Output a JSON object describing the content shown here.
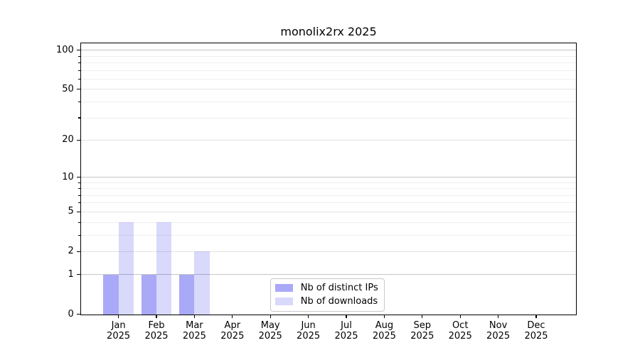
{
  "chart_data": {
    "type": "bar",
    "title": "monolix2rx 2025",
    "categories": [
      "Jan 2025",
      "Feb 2025",
      "Mar 2025",
      "Apr 2025",
      "May 2025",
      "Jun 2025",
      "Jul 2025",
      "Aug 2025",
      "Sep 2025",
      "Oct 2025",
      "Nov 2025",
      "Dec 2025"
    ],
    "xtick_months": [
      "Jan",
      "Feb",
      "Mar",
      "Apr",
      "May",
      "Jun",
      "Jul",
      "Aug",
      "Sep",
      "Oct",
      "Nov",
      "Dec"
    ],
    "xtick_year": "2025",
    "series": [
      {
        "name": "Nb of distinct IPs",
        "color": "rgba(30,30,235,0.38)",
        "values": [
          1,
          1,
          1,
          0,
          0,
          0,
          0,
          0,
          0,
          0,
          0,
          0
        ]
      },
      {
        "name": "Nb of downloads",
        "color": "rgba(30,30,235,0.17)",
        "values": [
          4,
          4,
          2,
          0,
          0,
          0,
          0,
          0,
          0,
          0,
          0,
          0
        ]
      }
    ],
    "y_axis": {
      "scale": "log1p",
      "major_ticks": [
        0,
        1,
        2,
        5,
        10,
        20,
        50,
        100
      ],
      "minor_ticks": [
        3,
        4,
        6,
        7,
        8,
        9,
        30,
        40,
        60,
        70,
        80,
        90
      ],
      "ylim": [
        0,
        113
      ]
    },
    "legend": {
      "position": "lower center"
    },
    "grid": "horizontal",
    "colors": {
      "grid_decade": "#c5c5c5",
      "grid_major": "#e4e4e4",
      "grid_minor": "#efefef",
      "axis": "#000000",
      "text": "#000000",
      "background": "#ffffff"
    }
  }
}
